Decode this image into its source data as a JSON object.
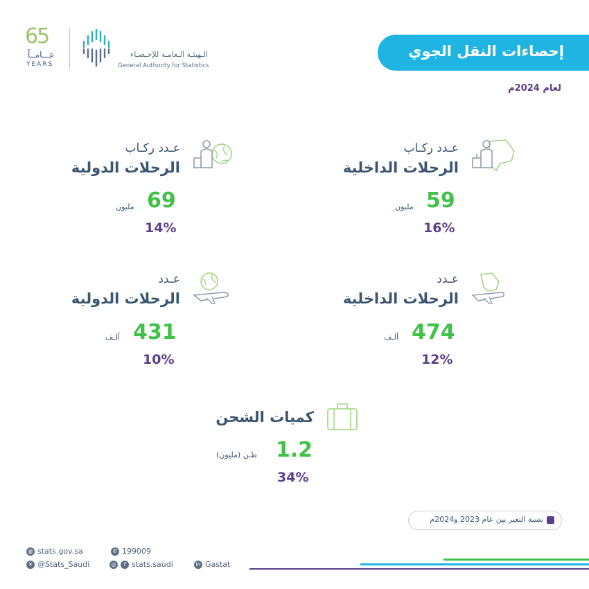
{
  "header": {
    "title": "إحصاءات النقل الجوي",
    "subtitle": "لعام 2024م",
    "logo_years_number": "65",
    "logo_years_ar": "عـــامــاً",
    "logo_years_en": "YEARS",
    "org_name_ar": "الـهيئـة الـعامـة للإحـصـاء",
    "org_name_en": "General Authority for Statistics"
  },
  "stats": {
    "domestic_passengers": {
      "label_small": "عـدد ركـاب",
      "label_big": "الرحلات الداخلية",
      "value": "59",
      "unit": "مليون",
      "change": "16%"
    },
    "international_passengers": {
      "label_small": "عـدد ركـاب",
      "label_big": "الرحلات الدولية",
      "value": "69",
      "unit": "مليون",
      "change": "14%"
    },
    "domestic_flights": {
      "label_small": "عـدد",
      "label_big": "الرحلات الداخلية",
      "value": "474",
      "unit": "ألـف",
      "change": "12%"
    },
    "international_flights": {
      "label_small": "عـدد",
      "label_big": "الرحلات الدولية",
      "value": "431",
      "unit": "ألـف",
      "change": "10%"
    },
    "cargo": {
      "label_big": "كميات الشحن",
      "value": "1.2",
      "unit": "طـن (مليون)",
      "change": "34%"
    }
  },
  "legend": {
    "text": "نسبة التغير بين عام 2023 و2024م",
    "color": "#5b3f86"
  },
  "footer": {
    "website": "stats.gov.sa",
    "phone": "199009",
    "twitter": "@Stats_Saudi",
    "instagram": "stats.saudi",
    "linkedin": "Gastat"
  },
  "colors": {
    "accent_blue": "#20b4e3",
    "number_green": "#42c14a",
    "percent_purple": "#5b3f86",
    "label_navy": "#3c5670"
  },
  "icons": [
    "person-luggage-map-icon",
    "person-luggage-globe-icon",
    "airplane-map-icon",
    "airplane-globe-icon",
    "suitcase-icon"
  ]
}
